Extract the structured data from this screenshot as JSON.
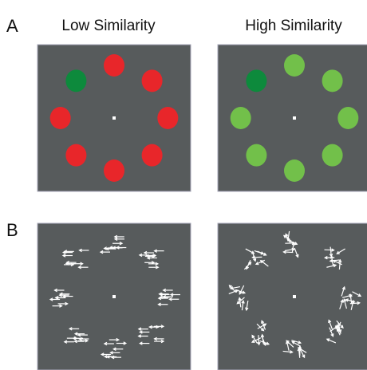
{
  "panel_a": {
    "label": "A",
    "columns": [
      "Low Similarity",
      "High Similarity"
    ]
  },
  "panel_b": {
    "label": "B"
  }
}
